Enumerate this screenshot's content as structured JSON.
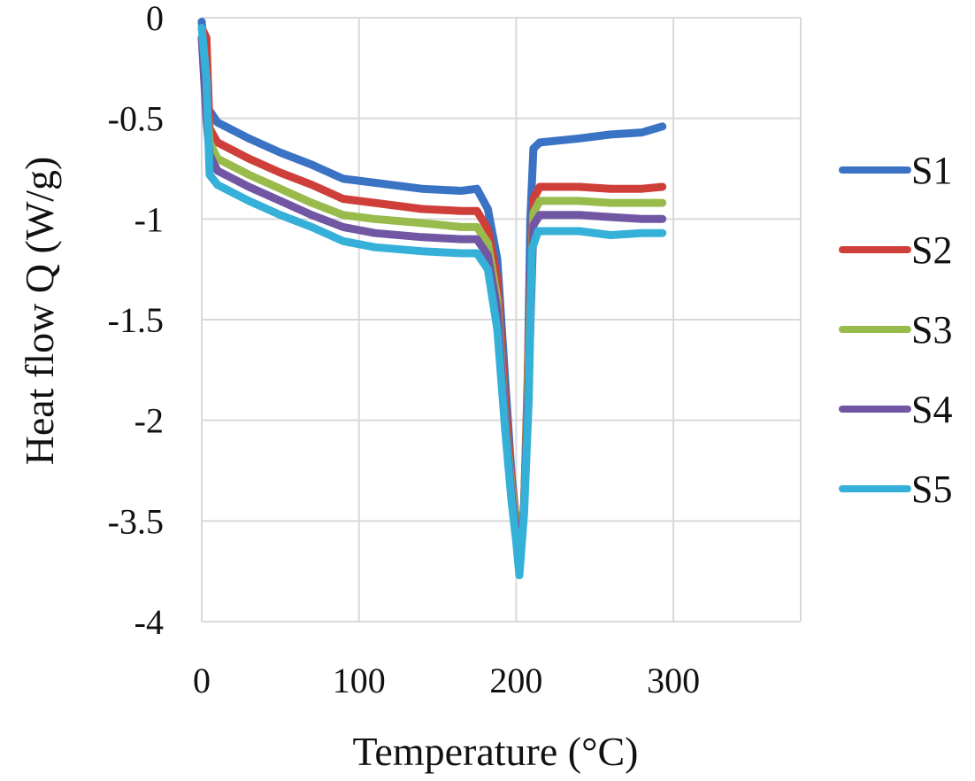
{
  "chart_data": {
    "type": "line",
    "title": "",
    "xlabel": "Temperature (°C)",
    "ylabel": "Heat flow Q (W/g)",
    "xlim": [
      0,
      380
    ],
    "x_ticks": [
      "0",
      "100",
      "200",
      "300"
    ],
    "x_tick_values": [
      0,
      100,
      200,
      300
    ],
    "y_ticks": [
      "0",
      "-0.5",
      "-1",
      "-1.5",
      "-2",
      "-3.5",
      "-4"
    ],
    "y_tick_values": [
      0,
      -0.5,
      -1,
      -1.5,
      -2,
      -3.5,
      -4
    ],
    "y_axis_note": "broken axis: gridlines equally spaced, jump from -2 to -3.5",
    "grid": true,
    "legend_position": "right",
    "series": [
      {
        "name": "S1",
        "color": "#3a72c4",
        "points": [
          [
            0,
            -0.02
          ],
          [
            2,
            -0.2
          ],
          [
            4,
            -0.45
          ],
          [
            10,
            -0.52
          ],
          [
            30,
            -0.6
          ],
          [
            50,
            -0.67
          ],
          [
            70,
            -0.73
          ],
          [
            90,
            -0.8
          ],
          [
            110,
            -0.82
          ],
          [
            140,
            -0.85
          ],
          [
            165,
            -0.86
          ],
          [
            175,
            -0.85
          ],
          [
            182,
            -0.95
          ],
          [
            188,
            -1.2
          ],
          [
            193,
            -1.8
          ],
          [
            197,
            -2.8
          ],
          [
            200,
            -3.5
          ],
          [
            202,
            -3.72
          ],
          [
            205,
            -3.3
          ],
          [
            207,
            -2.0
          ],
          [
            209,
            -1.0
          ],
          [
            211,
            -0.65
          ],
          [
            215,
            -0.62
          ],
          [
            240,
            -0.6
          ],
          [
            260,
            -0.58
          ],
          [
            280,
            -0.57
          ],
          [
            293,
            -0.54
          ]
        ]
      },
      {
        "name": "S2",
        "color": "#cf3f3a",
        "points": [
          [
            0,
            -0.05
          ],
          [
            3,
            -0.1
          ],
          [
            5,
            -0.55
          ],
          [
            10,
            -0.62
          ],
          [
            30,
            -0.7
          ],
          [
            50,
            -0.77
          ],
          [
            70,
            -0.83
          ],
          [
            90,
            -0.9
          ],
          [
            110,
            -0.92
          ],
          [
            140,
            -0.95
          ],
          [
            165,
            -0.96
          ],
          [
            175,
            -0.96
          ],
          [
            182,
            -1.05
          ],
          [
            188,
            -1.3
          ],
          [
            193,
            -1.9
          ],
          [
            197,
            -2.9
          ],
          [
            200,
            -3.5
          ],
          [
            202,
            -3.72
          ],
          [
            205,
            -3.3
          ],
          [
            208,
            -1.6
          ],
          [
            211,
            -0.9
          ],
          [
            215,
            -0.84
          ],
          [
            240,
            -0.84
          ],
          [
            260,
            -0.85
          ],
          [
            280,
            -0.85
          ],
          [
            293,
            -0.84
          ]
        ]
      },
      {
        "name": "S3",
        "color": "#98bb4c",
        "points": [
          [
            0,
            -0.1
          ],
          [
            3,
            -0.4
          ],
          [
            5,
            -0.62
          ],
          [
            10,
            -0.7
          ],
          [
            30,
            -0.78
          ],
          [
            50,
            -0.85
          ],
          [
            70,
            -0.92
          ],
          [
            90,
            -0.98
          ],
          [
            110,
            -1.0
          ],
          [
            140,
            -1.02
          ],
          [
            165,
            -1.04
          ],
          [
            175,
            -1.04
          ],
          [
            182,
            -1.12
          ],
          [
            188,
            -1.4
          ],
          [
            193,
            -2.0
          ],
          [
            197,
            -3.0
          ],
          [
            200,
            -3.5
          ],
          [
            202,
            -3.72
          ],
          [
            205,
            -3.3
          ],
          [
            208,
            -1.7
          ],
          [
            211,
            -0.97
          ],
          [
            215,
            -0.91
          ],
          [
            240,
            -0.91
          ],
          [
            260,
            -0.92
          ],
          [
            280,
            -0.92
          ],
          [
            293,
            -0.92
          ]
        ]
      },
      {
        "name": "S4",
        "color": "#7157a3",
        "points": [
          [
            0,
            -0.1
          ],
          [
            3,
            -0.5
          ],
          [
            5,
            -0.68
          ],
          [
            10,
            -0.76
          ],
          [
            30,
            -0.84
          ],
          [
            50,
            -0.91
          ],
          [
            70,
            -0.98
          ],
          [
            90,
            -1.04
          ],
          [
            110,
            -1.07
          ],
          [
            140,
            -1.09
          ],
          [
            165,
            -1.1
          ],
          [
            175,
            -1.1
          ],
          [
            182,
            -1.18
          ],
          [
            188,
            -1.45
          ],
          [
            193,
            -2.05
          ],
          [
            197,
            -3.1
          ],
          [
            200,
            -3.55
          ],
          [
            202,
            -3.74
          ],
          [
            205,
            -3.3
          ],
          [
            208,
            -1.8
          ],
          [
            211,
            -1.03
          ],
          [
            215,
            -0.98
          ],
          [
            240,
            -0.98
          ],
          [
            260,
            -0.99
          ],
          [
            280,
            -1.0
          ],
          [
            293,
            -1.0
          ]
        ]
      },
      {
        "name": "S5",
        "color": "#35b0d9",
        "points": [
          [
            0,
            -0.05
          ],
          [
            3,
            -0.3
          ],
          [
            5,
            -0.78
          ],
          [
            10,
            -0.83
          ],
          [
            30,
            -0.91
          ],
          [
            50,
            -0.98
          ],
          [
            70,
            -1.04
          ],
          [
            90,
            -1.11
          ],
          [
            110,
            -1.14
          ],
          [
            140,
            -1.16
          ],
          [
            165,
            -1.17
          ],
          [
            175,
            -1.17
          ],
          [
            182,
            -1.25
          ],
          [
            188,
            -1.55
          ],
          [
            193,
            -2.15
          ],
          [
            197,
            -3.2
          ],
          [
            200,
            -3.6
          ],
          [
            202,
            -3.77
          ],
          [
            205,
            -3.4
          ],
          [
            208,
            -1.9
          ],
          [
            210,
            -1.15
          ],
          [
            214,
            -1.06
          ],
          [
            240,
            -1.06
          ],
          [
            260,
            -1.08
          ],
          [
            280,
            -1.07
          ],
          [
            293,
            -1.07
          ]
        ]
      }
    ]
  }
}
